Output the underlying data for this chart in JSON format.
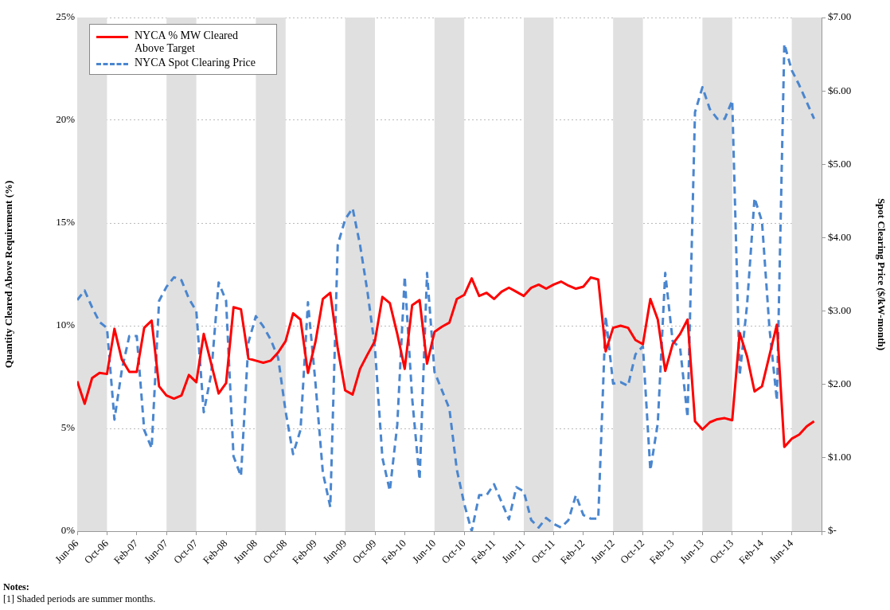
{
  "chart_data": {
    "type": "line",
    "ylabel": "Quantity Cleared Above Requirement (%)",
    "y2label": "Spot Clearing Price ($/kW-month)",
    "annotations": [
      "Notes:",
      "[1] Shaded periods are summer months."
    ],
    "x": [
      "2006-06",
      "2006-07",
      "2006-08",
      "2006-09",
      "2006-10",
      "2006-11",
      "2006-12",
      "2007-01",
      "2007-02",
      "2007-03",
      "2007-04",
      "2007-05",
      "2007-06",
      "2007-07",
      "2007-08",
      "2007-09",
      "2007-10",
      "2007-11",
      "2007-12",
      "2008-01",
      "2008-02",
      "2008-03",
      "2008-04",
      "2008-05",
      "2008-06",
      "2008-07",
      "2008-08",
      "2008-09",
      "2008-10",
      "2008-11",
      "2008-12",
      "2009-01",
      "2009-02",
      "2009-03",
      "2009-04",
      "2009-05",
      "2009-06",
      "2009-07",
      "2009-08",
      "2009-09",
      "2009-10",
      "2009-11",
      "2009-12",
      "2010-01",
      "2010-02",
      "2010-03",
      "2010-04",
      "2010-05",
      "2010-06",
      "2010-07",
      "2010-08",
      "2010-09",
      "2010-10",
      "2010-11",
      "2010-12",
      "2011-01",
      "2011-02",
      "2011-03",
      "2011-04",
      "2011-05",
      "2011-06",
      "2011-07",
      "2011-08",
      "2011-09",
      "2011-10",
      "2011-11",
      "2011-12",
      "2012-01",
      "2012-02",
      "2012-03",
      "2012-04",
      "2012-05",
      "2012-06",
      "2012-07",
      "2012-08",
      "2012-09",
      "2012-10",
      "2012-11",
      "2012-12",
      "2013-01",
      "2013-02",
      "2013-03",
      "2013-04",
      "2013-05",
      "2013-06",
      "2013-07",
      "2013-08",
      "2013-09",
      "2013-10",
      "2013-11",
      "2013-12",
      "2014-01",
      "2014-02",
      "2014-03",
      "2014-04",
      "2014-05",
      "2014-06",
      "2014-07",
      "2014-08",
      "2014-09"
    ],
    "series": [
      {
        "name": "NYCA % MW Cleared Above Target",
        "color": "#ff0000",
        "line_style": "solid",
        "values": [
          7.3,
          6.2,
          7.45,
          7.7,
          7.65,
          9.85,
          8.35,
          7.75,
          7.75,
          9.9,
          10.25,
          7.05,
          6.6,
          6.45,
          6.6,
          7.6,
          7.25,
          9.6,
          8.15,
          6.7,
          7.2,
          10.9,
          10.8,
          8.4,
          8.3,
          8.2,
          8.3,
          8.7,
          9.25,
          10.6,
          10.3,
          7.7,
          9.2,
          11.3,
          11.6,
          8.9,
          6.85,
          6.65,
          7.9,
          8.6,
          9.25,
          11.4,
          11.1,
          9.6,
          7.9,
          11.0,
          11.25,
          8.15,
          9.7,
          9.95,
          10.15,
          11.3,
          11.5,
          12.3,
          11.45,
          11.6,
          11.3,
          11.65,
          11.85,
          11.65,
          11.45,
          11.85,
          12.0,
          11.8,
          12.0,
          12.15,
          11.95,
          11.8,
          11.9,
          12.35,
          12.25,
          8.75,
          9.9,
          10.0,
          9.9,
          9.3,
          9.1,
          11.3,
          10.3,
          7.8,
          9.1,
          9.6,
          10.3,
          5.35,
          4.95,
          5.3,
          5.45,
          5.5,
          5.4,
          9.65,
          8.5,
          6.8,
          7.05,
          8.55,
          10.05,
          4.1,
          4.5,
          4.7,
          5.1,
          5.35
        ]
      },
      {
        "name": "NYCA Spot Clearing Price",
        "color": "#4a86cf",
        "line_style": "dashed",
        "axis": "y2",
        "values": [
          3.15,
          3.28,
          3.05,
          2.85,
          2.77,
          1.52,
          2.2,
          2.66,
          2.66,
          1.38,
          1.13,
          3.14,
          3.33,
          3.46,
          3.42,
          3.17,
          3.0,
          1.62,
          2.14,
          3.39,
          3.14,
          1.02,
          0.75,
          2.57,
          2.93,
          2.79,
          2.61,
          2.36,
          1.63,
          1.05,
          1.38,
          3.12,
          2.03,
          0.8,
          0.33,
          3.9,
          4.25,
          4.4,
          3.9,
          3.26,
          2.5,
          1.0,
          0.55,
          1.45,
          3.47,
          1.81,
          0.7,
          3.52,
          2.17,
          1.92,
          1.67,
          0.84,
          0.37,
          0,
          0.49,
          0.49,
          0.64,
          0.4,
          0.16,
          0.6,
          0.54,
          0.15,
          0.05,
          0.18,
          0.1,
          0.05,
          0.15,
          0.49,
          0.22,
          0.17,
          0.17,
          2.93,
          2.01,
          2.03,
          1.98,
          2.41,
          2.52,
          0.83,
          1.47,
          3.52,
          2.59,
          2.5,
          1.55,
          5.71,
          6.05,
          5.75,
          5.62,
          5.62,
          5.87,
          2.12,
          3.09,
          4.54,
          4.22,
          2.77,
          1.78,
          6.64,
          6.28,
          6.08,
          5.85,
          5.62
        ]
      }
    ],
    "xlim": [
      "2006-06",
      "2014-10"
    ],
    "xticks": [
      {
        "value": "2006-06",
        "label": "Jun-06"
      },
      {
        "value": "2006-10",
        "label": "Oct-06"
      },
      {
        "value": "2007-02",
        "label": "Feb-07"
      },
      {
        "value": "2007-06",
        "label": "Jun-07"
      },
      {
        "value": "2007-10",
        "label": "Oct-07"
      },
      {
        "value": "2008-02",
        "label": "Feb-08"
      },
      {
        "value": "2008-06",
        "label": "Jun-08"
      },
      {
        "value": "2008-10",
        "label": "Oct-08"
      },
      {
        "value": "2009-02",
        "label": "Feb-09"
      },
      {
        "value": "2009-06",
        "label": "Jun-09"
      },
      {
        "value": "2009-10",
        "label": "Oct-09"
      },
      {
        "value": "2010-02",
        "label": "Feb-10"
      },
      {
        "value": "2010-06",
        "label": "Jun-10"
      },
      {
        "value": "2010-10",
        "label": "Oct-10"
      },
      {
        "value": "2011-02",
        "label": "Feb-11"
      },
      {
        "value": "2011-06",
        "label": "Jun-11"
      },
      {
        "value": "2011-10",
        "label": "Oct-11"
      },
      {
        "value": "2012-02",
        "label": "Feb-12"
      },
      {
        "value": "2012-06",
        "label": "Jun-12"
      },
      {
        "value": "2012-10",
        "label": "Oct-12"
      },
      {
        "value": "2013-02",
        "label": "Feb-13"
      },
      {
        "value": "2013-06",
        "label": "Jun-13"
      },
      {
        "value": "2013-10",
        "label": "Oct-13"
      },
      {
        "value": "2014-02",
        "label": "Feb-14"
      },
      {
        "value": "2014-06",
        "label": "Jun-14"
      },
      {
        "value": "2014-10",
        "label": null
      }
    ],
    "ylim": [
      0,
      25
    ],
    "yticks": [
      {
        "value": 0,
        "label": "0%"
      },
      {
        "value": 5,
        "label": "5%"
      },
      {
        "value": 10,
        "label": "10%"
      },
      {
        "value": 15,
        "label": "15%"
      },
      {
        "value": 20,
        "label": "20%"
      },
      {
        "value": 25,
        "label": "25%"
      }
    ],
    "y2lim": [
      0,
      7
    ],
    "y2ticks": [
      {
        "value": 0,
        "label": "$-"
      },
      {
        "value": 1,
        "label": "$1.00"
      },
      {
        "value": 2,
        "label": "$2.00"
      },
      {
        "value": 3,
        "label": "$3.00"
      },
      {
        "value": 4,
        "label": "$4.00"
      },
      {
        "value": 5,
        "label": "$5.00"
      },
      {
        "value": 6,
        "label": "$6.00"
      },
      {
        "value": 7,
        "label": "$7.00"
      }
    ],
    "bands": [
      {
        "axis": "x",
        "from": "2006-06",
        "to": "2006-10",
        "color": "#e0e0e0"
      },
      {
        "axis": "x",
        "from": "2007-06",
        "to": "2007-10",
        "color": "#e0e0e0"
      },
      {
        "axis": "x",
        "from": "2008-06",
        "to": "2008-10",
        "color": "#e0e0e0"
      },
      {
        "axis": "x",
        "from": "2009-06",
        "to": "2009-10",
        "color": "#e0e0e0"
      },
      {
        "axis": "x",
        "from": "2010-06",
        "to": "2010-10",
        "color": "#e0e0e0"
      },
      {
        "axis": "x",
        "from": "2011-06",
        "to": "2011-10",
        "color": "#e0e0e0"
      },
      {
        "axis": "x",
        "from": "2012-06",
        "to": "2012-10",
        "color": "#e0e0e0"
      },
      {
        "axis": "x",
        "from": "2013-06",
        "to": "2013-10",
        "color": "#e0e0e0"
      },
      {
        "axis": "x",
        "from": "2014-06",
        "to": "2014-10",
        "color": "#e0e0e0"
      }
    ],
    "grid": "y",
    "legend": "top left",
    "marker": "none"
  }
}
